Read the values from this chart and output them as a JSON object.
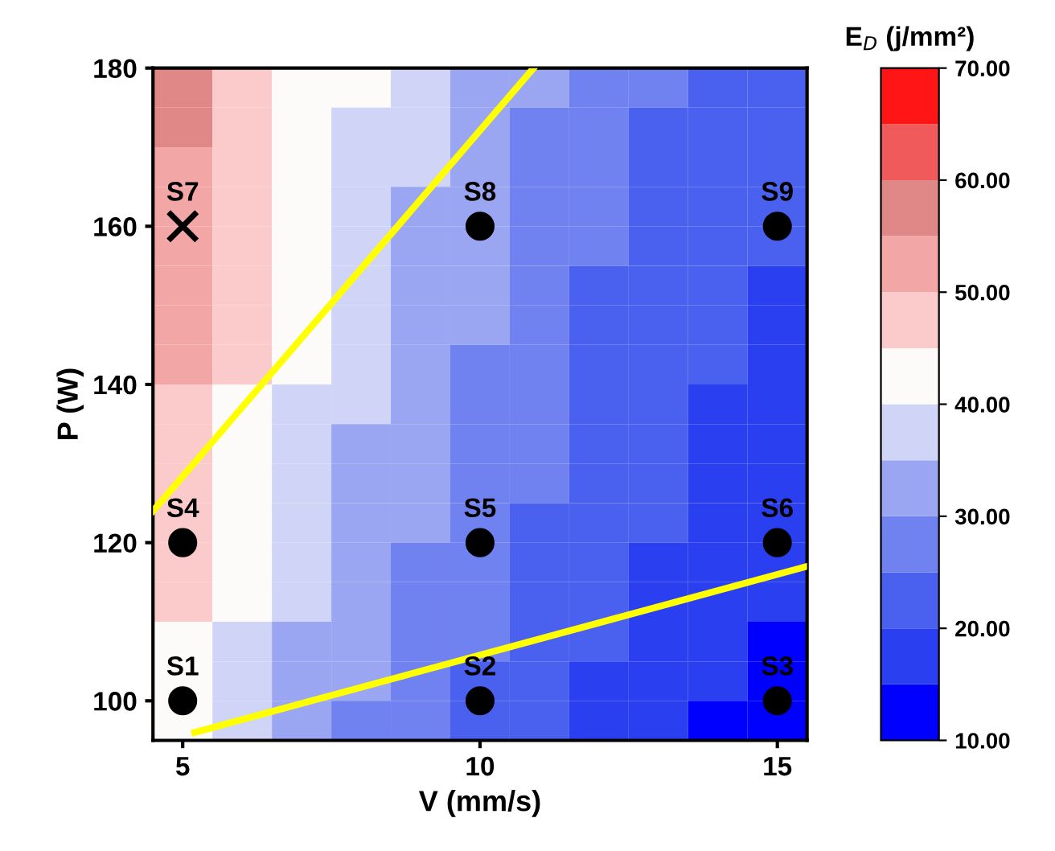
{
  "chart_data": {
    "type": "heatmap",
    "xlabel": "V (mm/s)",
    "ylabel": "P (W)",
    "clabel": "E$_{D}$ (j/mm²)",
    "x": [
      5,
      6,
      7,
      8,
      9,
      10,
      11,
      12,
      13,
      14,
      15
    ],
    "y": [
      177.5,
      172.5,
      167.5,
      162.5,
      157.5,
      152.5,
      147.5,
      142.5,
      137.5,
      132.5,
      127.5,
      122.5,
      117.5,
      112.5,
      107.5,
      102.5,
      97.5
    ],
    "cells": [
      [
        57,
        48,
        44,
        40,
        36,
        33,
        30,
        27,
        25,
        23,
        22
      ],
      [
        56,
        47,
        43,
        39,
        35,
        32,
        29,
        26,
        24,
        22,
        21
      ],
      [
        54,
        47,
        43,
        38,
        35,
        32,
        29,
        26,
        24,
        22,
        21
      ],
      [
        53,
        47,
        42,
        38,
        34,
        31,
        28,
        25,
        23,
        21,
        20
      ],
      [
        52,
        46,
        42,
        38,
        34,
        31,
        28,
        25,
        23,
        21,
        20
      ],
      [
        51,
        46,
        41,
        37,
        33,
        30,
        27,
        24,
        22,
        20,
        19
      ],
      [
        51,
        46,
        41,
        37,
        33,
        30,
        27,
        24,
        22,
        20,
        19
      ],
      [
        50,
        45,
        40,
        36,
        32,
        29,
        26,
        24,
        22,
        20,
        19
      ],
      [
        49,
        44,
        39,
        35,
        32,
        29,
        26,
        23,
        21,
        19,
        18
      ],
      [
        48,
        43,
        38,
        34,
        31,
        28,
        25,
        23,
        21,
        19,
        18
      ],
      [
        47,
        42,
        37,
        34,
        30,
        27,
        25,
        22,
        20,
        19,
        17
      ],
      [
        46,
        42,
        37,
        33,
        30,
        27,
        24,
        22,
        20,
        18,
        17
      ],
      [
        46,
        41,
        36,
        32,
        29,
        26,
        23,
        21,
        19,
        17,
        16
      ],
      [
        45,
        40,
        35,
        31,
        28,
        25,
        22,
        20,
        18,
        16,
        15
      ],
      [
        44,
        39,
        34,
        31,
        28,
        25,
        22,
        20,
        18,
        16,
        14
      ],
      [
        43,
        38,
        33,
        30,
        27,
        24,
        21,
        19,
        17,
        15,
        13
      ],
      [
        42,
        37,
        33,
        29,
        26,
        23,
        20,
        18,
        16,
        14,
        12
      ]
    ],
    "colors": [
      "#0000ff",
      "#2a40f0",
      "#4a60ee",
      "#7082f0",
      "#9aa6f2",
      "#d0d5f8",
      "#fdfafa",
      "#fbcaca",
      "#f3a6a6",
      "#e08888",
      "#f05a5a",
      "#ff1515"
    ],
    "clim": [
      10,
      70
    ],
    "cticks": [
      {
        "value": 10,
        "label": "10.00"
      },
      {
        "value": 20,
        "label": "20.00"
      },
      {
        "value": 30,
        "label": "30.00"
      },
      {
        "value": 40,
        "label": "40.00"
      },
      {
        "value": 50,
        "label": "50.00"
      },
      {
        "value": 60,
        "label": "60.00"
      },
      {
        "value": 70,
        "label": "70.00"
      }
    ],
    "xlim": [
      4.5,
      15.5
    ],
    "ylim": [
      95,
      180
    ],
    "xticks": [
      5,
      10,
      15
    ],
    "yticks": [
      100,
      120,
      140,
      160,
      180
    ],
    "series": [
      {
        "type": "scatter",
        "color": "#000000",
        "marker": "circle",
        "x": [
          5,
          10,
          15,
          5,
          10,
          15,
          10,
          15
        ],
        "values": [
          100,
          100,
          100,
          120,
          120,
          120,
          160,
          160
        ],
        "value_labels": [
          "S1",
          "S2",
          "S3",
          "S4",
          "S5",
          "S6",
          "S8",
          "S9"
        ]
      },
      {
        "type": "scatter",
        "color": "#000000",
        "marker": "cross",
        "x": [
          5
        ],
        "values": [
          160
        ],
        "value_labels": [
          "S7"
        ]
      },
      {
        "type": "line",
        "color": "#ffff00",
        "x": [
          4.5,
          10.9
        ],
        "values": [
          124,
          180
        ]
      },
      {
        "type": "line",
        "color": "#ffff00",
        "x": [
          5.2,
          15.5
        ],
        "values": [
          96,
          117
        ]
      }
    ]
  }
}
